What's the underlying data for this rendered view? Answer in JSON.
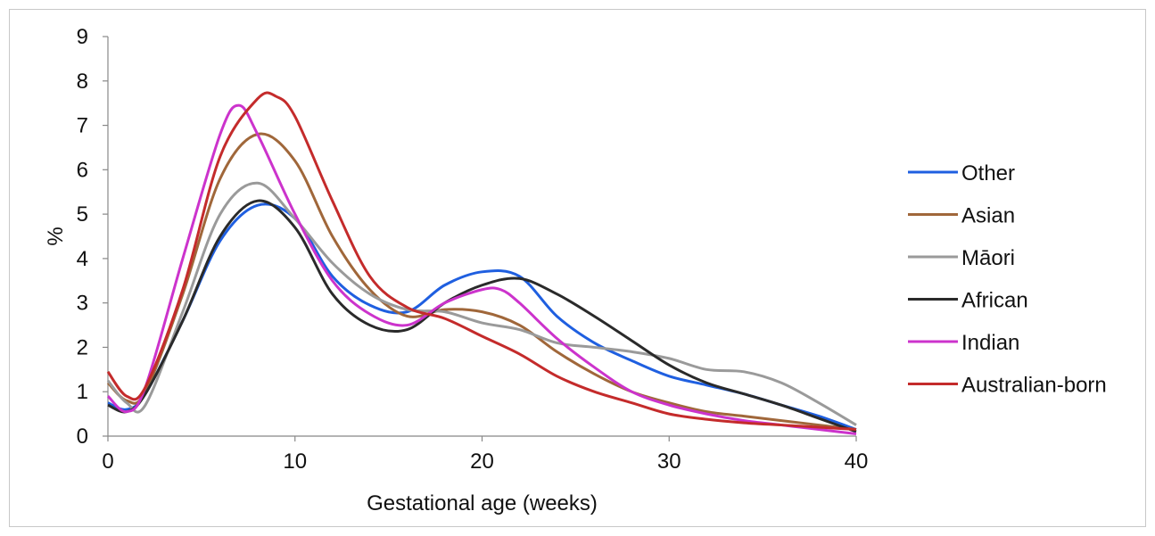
{
  "chart_data": {
    "type": "line",
    "xlabel": "Gestational age (weeks)",
    "ylabel": "%",
    "xlim": [
      0,
      40
    ],
    "ylim": [
      0,
      9
    ],
    "xticks": [
      0,
      10,
      20,
      30,
      40
    ],
    "yticks": [
      0,
      1,
      2,
      3,
      4,
      5,
      6,
      7,
      8,
      9
    ],
    "grid": false,
    "legend_position": "right",
    "series": [
      {
        "name": "Other",
        "color": "#1f5fe0",
        "x": [
          0,
          1,
          2,
          4,
          6,
          8,
          10,
          12,
          14,
          16,
          18,
          20,
          22,
          24,
          26,
          28,
          30,
          32,
          34,
          36,
          38,
          40
        ],
        "y": [
          0.75,
          0.6,
          0.95,
          2.6,
          4.4,
          5.2,
          4.9,
          3.6,
          2.95,
          2.8,
          3.4,
          3.7,
          3.6,
          2.7,
          2.1,
          1.7,
          1.35,
          1.15,
          0.95,
          0.7,
          0.45,
          0.15
        ]
      },
      {
        "name": "Asian",
        "color": "#a0673a",
        "x": [
          0,
          1,
          2,
          4,
          6,
          8,
          10,
          12,
          14,
          16,
          18,
          20,
          22,
          24,
          26,
          28,
          30,
          32,
          34,
          36,
          38,
          40
        ],
        "y": [
          1.2,
          0.8,
          1.0,
          3.2,
          5.8,
          6.8,
          6.2,
          4.5,
          3.3,
          2.7,
          2.85,
          2.8,
          2.5,
          1.9,
          1.4,
          1.0,
          0.75,
          0.55,
          0.45,
          0.35,
          0.25,
          0.15
        ]
      },
      {
        "name": "Māori",
        "color": "#9a9a9a",
        "x": [
          0,
          1,
          2,
          4,
          6,
          8,
          10,
          12,
          14,
          16,
          18,
          20,
          22,
          24,
          26,
          28,
          30,
          32,
          34,
          36,
          38,
          40
        ],
        "y": [
          1.25,
          0.75,
          0.7,
          2.8,
          5.0,
          5.7,
          4.9,
          3.9,
          3.2,
          2.85,
          2.8,
          2.55,
          2.4,
          2.1,
          2.0,
          1.9,
          1.75,
          1.5,
          1.45,
          1.2,
          0.75,
          0.25
        ]
      },
      {
        "name": "African",
        "color": "#2a2a2a",
        "x": [
          0,
          1,
          2,
          4,
          6,
          8,
          10,
          12,
          14,
          16,
          18,
          20,
          22,
          24,
          26,
          28,
          30,
          32,
          34,
          36,
          38,
          40
        ],
        "y": [
          0.7,
          0.55,
          0.95,
          2.6,
          4.5,
          5.3,
          4.7,
          3.2,
          2.5,
          2.4,
          3.0,
          3.4,
          3.55,
          3.2,
          2.7,
          2.15,
          1.6,
          1.2,
          0.95,
          0.7,
          0.4,
          0.1
        ]
      },
      {
        "name": "Indian",
        "color": "#cc33cc",
        "x": [
          0,
          1,
          2,
          4,
          6,
          7,
          8,
          10,
          12,
          14,
          16,
          18,
          20,
          21,
          22,
          24,
          26,
          28,
          30,
          32,
          34,
          36,
          38,
          40
        ],
        "y": [
          0.9,
          0.55,
          1.1,
          4.0,
          6.8,
          7.45,
          6.8,
          5.0,
          3.5,
          2.75,
          2.5,
          3.0,
          3.3,
          3.3,
          3.0,
          2.2,
          1.55,
          1.0,
          0.7,
          0.5,
          0.35,
          0.25,
          0.15,
          0.05
        ]
      },
      {
        "name": "Australian-born",
        "color": "#c42b2b",
        "x": [
          0,
          1,
          2,
          4,
          6,
          8,
          9,
          10,
          12,
          14,
          16,
          18,
          20,
          22,
          24,
          26,
          28,
          30,
          32,
          34,
          36,
          38,
          40
        ],
        "y": [
          1.45,
          0.9,
          1.1,
          3.3,
          6.3,
          7.6,
          7.65,
          7.2,
          5.3,
          3.6,
          2.9,
          2.65,
          2.25,
          1.85,
          1.35,
          1.0,
          0.75,
          0.5,
          0.38,
          0.3,
          0.25,
          0.2,
          0.15
        ]
      }
    ]
  }
}
